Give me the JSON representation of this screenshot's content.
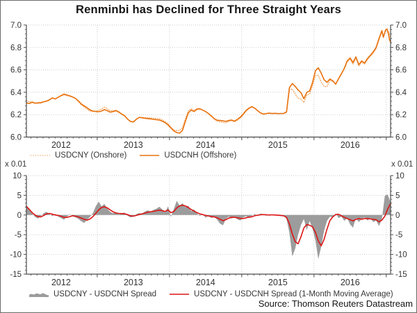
{
  "title": "Renminbi has Declined for Three Straight Years",
  "source": "Source: Thomson Reuters Datastream",
  "colors": {
    "offshore_orange": "#E8710D",
    "onshore_orange": "#F3A158",
    "ma_red": "#DC1414",
    "spread_gray": "#9C9C9C",
    "grid": "#CBCBCB",
    "axis": "#4A4A4A",
    "text": "#333333",
    "title_text": "#161616",
    "background": "#FFFFFF",
    "border": "#6B6B6B"
  },
  "chart_data": [
    {
      "type": "line",
      "title": "",
      "xlabel": "",
      "ylabel": "",
      "xlim": [
        2012.02,
        2017.06
      ],
      "ylim": [
        6.0,
        7.0
      ],
      "yticks": [
        7.0,
        6.8,
        6.6,
        6.4,
        6.2,
        6.0
      ],
      "ytick_labels": [
        "7.0",
        "6.8",
        "6.6",
        "6.4",
        "6.2",
        "6.0"
      ],
      "year_labels": [
        "2012",
        "2013",
        "2014",
        "2015",
        "2016"
      ],
      "grid": true,
      "legend_position": "bottom",
      "x": [
        2012.02,
        2012.06,
        2012.1,
        2012.14,
        2012.18,
        2012.22,
        2012.26,
        2012.3,
        2012.34,
        2012.38,
        2012.42,
        2012.46,
        2012.5,
        2012.54,
        2012.58,
        2012.62,
        2012.66,
        2012.7,
        2012.74,
        2012.78,
        2012.82,
        2012.86,
        2012.9,
        2012.94,
        2012.98,
        2013.02,
        2013.06,
        2013.1,
        2013.14,
        2013.18,
        2013.22,
        2013.26,
        2013.3,
        2013.34,
        2013.38,
        2013.42,
        2013.46,
        2013.5,
        2013.54,
        2013.58,
        2013.62,
        2013.66,
        2013.7,
        2013.74,
        2013.78,
        2013.82,
        2013.86,
        2013.9,
        2013.94,
        2013.98,
        2014.02,
        2014.06,
        2014.1,
        2014.14,
        2014.18,
        2014.22,
        2014.26,
        2014.3,
        2014.34,
        2014.38,
        2014.42,
        2014.46,
        2014.5,
        2014.54,
        2014.58,
        2014.62,
        2014.66,
        2014.7,
        2014.74,
        2014.78,
        2014.82,
        2014.86,
        2014.9,
        2014.94,
        2014.98,
        2015.02,
        2015.06,
        2015.1,
        2015.14,
        2015.18,
        2015.22,
        2015.26,
        2015.3,
        2015.34,
        2015.38,
        2015.42,
        2015.46,
        2015.5,
        2015.54,
        2015.58,
        2015.62,
        2015.66,
        2015.7,
        2015.74,
        2015.78,
        2015.82,
        2015.86,
        2015.9,
        2015.94,
        2015.98,
        2016.02,
        2016.06,
        2016.1,
        2016.14,
        2016.18,
        2016.22,
        2016.26,
        2016.3,
        2016.34,
        2016.38,
        2016.42,
        2016.46,
        2016.5,
        2016.54,
        2016.58,
        2016.62,
        2016.66,
        2016.7,
        2016.74,
        2016.78,
        2016.82,
        2016.86,
        2016.9,
        2016.94,
        2016.96,
        2016.99,
        2017.01,
        2017.03,
        2017.045,
        2017.06
      ],
      "series": [
        {
          "name": "USDCNY (Onshore)",
          "style": "dotted",
          "swatch": "dotted-line",
          "dashed": true,
          "width": 1.4,
          "color": "#F3A158",
          "values": [
            6.327,
            6.312,
            6.316,
            6.302,
            6.301,
            6.303,
            6.314,
            6.323,
            6.336,
            6.352,
            6.34,
            6.354,
            6.367,
            6.377,
            6.369,
            6.364,
            6.356,
            6.342,
            6.317,
            6.287,
            6.267,
            6.249,
            6.232,
            6.228,
            6.232,
            6.239,
            6.251,
            6.266,
            6.253,
            6.235,
            6.236,
            6.24,
            6.226,
            6.208,
            6.191,
            6.161,
            6.138,
            6.132,
            6.157,
            6.176,
            6.175,
            6.173,
            6.172,
            6.17,
            6.168,
            6.166,
            6.164,
            6.153,
            6.137,
            6.121,
            6.088,
            6.064,
            6.058,
            6.058,
            6.085,
            6.163,
            6.234,
            6.254,
            6.238,
            6.254,
            6.255,
            6.241,
            6.227,
            6.208,
            6.184,
            6.16,
            6.143,
            6.137,
            6.131,
            6.128,
            6.14,
            6.146,
            6.136,
            6.151,
            6.169,
            6.196,
            6.231,
            6.252,
            6.268,
            6.256,
            6.234,
            6.216,
            6.206,
            6.21,
            6.213,
            6.21,
            6.212,
            6.209,
            6.209,
            6.209,
            6.219,
            6.418,
            6.43,
            6.384,
            6.347,
            6.34,
            6.309,
            6.374,
            6.386,
            6.458,
            6.548,
            6.552,
            6.492,
            6.45,
            6.452,
            6.504,
            6.497,
            6.473,
            6.522,
            6.563,
            6.609,
            6.671,
            6.693,
            6.65,
            6.704,
            6.636,
            6.669,
            6.651,
            6.691,
            6.72,
            6.748,
            6.788,
            6.868,
            6.938,
            6.905,
            6.945,
            6.952,
            6.945,
            6.918,
            6.893
          ]
        },
        {
          "name": "USDCNH (Offshore)",
          "style": "solid",
          "swatch": "solid-line",
          "dashed": false,
          "width": 1.6,
          "color": "#E8710D",
          "values": [
            6.305,
            6.3,
            6.31,
            6.302,
            6.305,
            6.308,
            6.315,
            6.32,
            6.332,
            6.35,
            6.34,
            6.355,
            6.37,
            6.383,
            6.375,
            6.368,
            6.358,
            6.345,
            6.322,
            6.295,
            6.278,
            6.262,
            6.242,
            6.232,
            6.228,
            6.226,
            6.232,
            6.245,
            6.235,
            6.222,
            6.228,
            6.235,
            6.222,
            6.205,
            6.188,
            6.16,
            6.14,
            6.135,
            6.158,
            6.175,
            6.172,
            6.168,
            6.165,
            6.162,
            6.158,
            6.155,
            6.152,
            6.142,
            6.128,
            6.108,
            6.082,
            6.055,
            6.04,
            6.035,
            6.06,
            6.14,
            6.215,
            6.24,
            6.228,
            6.248,
            6.252,
            6.24,
            6.228,
            6.21,
            6.188,
            6.165,
            6.15,
            6.148,
            6.145,
            6.14,
            6.148,
            6.152,
            6.142,
            6.158,
            6.178,
            6.205,
            6.238,
            6.258,
            6.272,
            6.258,
            6.235,
            6.215,
            6.205,
            6.21,
            6.213,
            6.21,
            6.212,
            6.209,
            6.21,
            6.211,
            6.225,
            6.44,
            6.478,
            6.452,
            6.42,
            6.395,
            6.342,
            6.398,
            6.412,
            6.488,
            6.592,
            6.618,
            6.57,
            6.512,
            6.488,
            6.518,
            6.502,
            6.472,
            6.52,
            6.565,
            6.615,
            6.68,
            6.705,
            6.665,
            6.715,
            6.645,
            6.68,
            6.66,
            6.7,
            6.73,
            6.76,
            6.8,
            6.88,
            6.95,
            6.89,
            6.955,
            6.965,
            6.92,
            6.87,
            6.845
          ]
        }
      ]
    },
    {
      "type": "area",
      "title": "",
      "xlabel": "",
      "ylabel": "",
      "unit_label": "x 0.01",
      "xlim": [
        2012.02,
        2017.06
      ],
      "ylim": [
        -15,
        10
      ],
      "yticks": [
        10,
        5,
        0,
        -5,
        -10,
        -15
      ],
      "ytick_labels": [
        "10",
        "5",
        "0",
        "-5",
        "-10",
        "-15"
      ],
      "year_labels": [
        "2012",
        "2013",
        "2014",
        "2015",
        "2016"
      ],
      "grid": true,
      "legend_position": "bottom",
      "x": [
        2012.02,
        2012.06,
        2012.1,
        2012.14,
        2012.18,
        2012.22,
        2012.26,
        2012.3,
        2012.34,
        2012.38,
        2012.42,
        2012.46,
        2012.5,
        2012.54,
        2012.58,
        2012.62,
        2012.66,
        2012.7,
        2012.74,
        2012.78,
        2012.82,
        2012.86,
        2012.9,
        2012.94,
        2012.98,
        2013.02,
        2013.06,
        2013.1,
        2013.14,
        2013.18,
        2013.22,
        2013.26,
        2013.3,
        2013.34,
        2013.38,
        2013.42,
        2013.46,
        2013.5,
        2013.54,
        2013.58,
        2013.62,
        2013.66,
        2013.7,
        2013.74,
        2013.78,
        2013.82,
        2013.86,
        2013.9,
        2013.94,
        2013.98,
        2014.02,
        2014.06,
        2014.1,
        2014.14,
        2014.18,
        2014.22,
        2014.26,
        2014.3,
        2014.34,
        2014.38,
        2014.42,
        2014.46,
        2014.5,
        2014.54,
        2014.58,
        2014.62,
        2014.66,
        2014.7,
        2014.74,
        2014.78,
        2014.82,
        2014.86,
        2014.9,
        2014.94,
        2014.98,
        2015.02,
        2015.06,
        2015.1,
        2015.14,
        2015.18,
        2015.22,
        2015.26,
        2015.3,
        2015.34,
        2015.38,
        2015.42,
        2015.46,
        2015.5,
        2015.54,
        2015.58,
        2015.62,
        2015.66,
        2015.7,
        2015.74,
        2015.78,
        2015.82,
        2015.86,
        2015.9,
        2015.94,
        2015.98,
        2016.02,
        2016.06,
        2016.1,
        2016.14,
        2016.18,
        2016.22,
        2016.26,
        2016.3,
        2016.34,
        2016.38,
        2016.42,
        2016.46,
        2016.5,
        2016.54,
        2016.58,
        2016.62,
        2016.66,
        2016.7,
        2016.74,
        2016.78,
        2016.82,
        2016.86,
        2016.9,
        2016.94,
        2016.98,
        2017.02,
        2017.06
      ],
      "series": [
        {
          "name": "USDCNY - USDCNH Spread",
          "kind": "area",
          "swatch": "area",
          "color": "#9C9C9C",
          "values": [
            2.4,
            1.2,
            0.4,
            -0.5,
            -0.9,
            -0.3,
            0.5,
            0.8,
            0.2,
            -0.3,
            0.3,
            -0.4,
            -0.8,
            -1.2,
            -0.4,
            0.2,
            -0.3,
            -0.6,
            -1.0,
            -1.6,
            -2.0,
            -1.2,
            -0.5,
            0.5,
            2.2,
            3.4,
            2.2,
            2.8,
            1.6,
            0.8,
            0.4,
            0.8,
            0.2,
            0.5,
            0.6,
            -0.2,
            -0.6,
            -0.4,
            0.2,
            0.5,
            0.3,
            0.9,
            1.2,
            0.8,
            1.3,
            1.6,
            2.1,
            1.4,
            0.6,
            2.2,
            -0.5,
            1.5,
            3.6,
            2.4,
            3.0,
            2.0,
            2.4,
            1.0,
            1.4,
            0.4,
            -0.3,
            0.3,
            -0.7,
            -0.2,
            -0.8,
            -0.4,
            -1.2,
            -2.2,
            -2.6,
            -1.0,
            -0.4,
            -0.9,
            -0.4,
            -1.1,
            -1.4,
            -0.6,
            -0.3,
            -0.8,
            -0.2,
            0.3,
            -0.2,
            0.4,
            0.1,
            -0.2,
            0.2,
            -0.1,
            0.1,
            -0.2,
            -0.3,
            -0.2,
            -1.0,
            -4.5,
            -10.5,
            -8.5,
            -5.0,
            -2.5,
            -1.0,
            -3.8,
            -1.5,
            -3.5,
            -6.5,
            -11.2,
            -8.0,
            -4.0,
            -1.5,
            -0.4,
            -0.6,
            0.4,
            -0.8,
            -0.4,
            -1.5,
            -0.8,
            -2.4,
            -3.2,
            -0.8,
            -1.8,
            -1.0,
            -0.6,
            -1.4,
            -0.8,
            -1.8,
            -1.4,
            -2.8,
            -1.0,
            4.9,
            5.2,
            3.2
          ]
        },
        {
          "name": "USDCNY - USDCNH Spread (1-Month Moving Average)",
          "kind": "line",
          "swatch": "red-line",
          "dashed": false,
          "width": 1.6,
          "color": "#DC1414",
          "values": [
            2.2,
            1.4,
            0.6,
            0.0,
            -0.4,
            -0.5,
            -0.1,
            0.3,
            0.4,
            0.2,
            0.0,
            -0.1,
            -0.3,
            -0.6,
            -0.6,
            -0.4,
            -0.2,
            -0.3,
            -0.5,
            -0.8,
            -1.1,
            -1.3,
            -1.0,
            -0.4,
            0.4,
            1.3,
            1.9,
            2.1,
            1.8,
            1.3,
            0.8,
            0.5,
            0.4,
            0.35,
            0.3,
            0.1,
            -0.2,
            -0.3,
            -0.1,
            0.1,
            0.3,
            0.5,
            0.7,
            0.85,
            0.95,
            1.1,
            1.25,
            1.1,
            0.9,
            1.3,
            0.6,
            0.9,
            1.8,
            2.3,
            2.5,
            2.3,
            1.9,
            1.4,
            1.0,
            0.6,
            0.3,
            0.1,
            -0.1,
            -0.25,
            -0.4,
            -0.5,
            -0.7,
            -1.1,
            -1.45,
            -1.2,
            -0.8,
            -0.6,
            -0.6,
            -0.7,
            -0.85,
            -0.9,
            -0.7,
            -0.55,
            -0.45,
            -0.2,
            -0.05,
            0.05,
            0.1,
            0.05,
            0.0,
            0.05,
            0.0,
            -0.05,
            -0.1,
            -0.2,
            -0.6,
            -2.2,
            -4.8,
            -6.8,
            -7.3,
            -5.5,
            -3.3,
            -2.4,
            -2.6,
            -3.0,
            -4.4,
            -6.6,
            -7.8,
            -6.2,
            -3.6,
            -1.4,
            -0.5,
            0.1,
            0.2,
            -0.2,
            -0.6,
            -0.9,
            -1.2,
            -1.5,
            -1.1,
            -0.9,
            -1.1,
            -0.9,
            -0.9,
            -1.0,
            -1.1,
            -1.2,
            -1.7,
            -1.3,
            -0.3,
            1.5,
            2.9
          ]
        }
      ]
    }
  ]
}
